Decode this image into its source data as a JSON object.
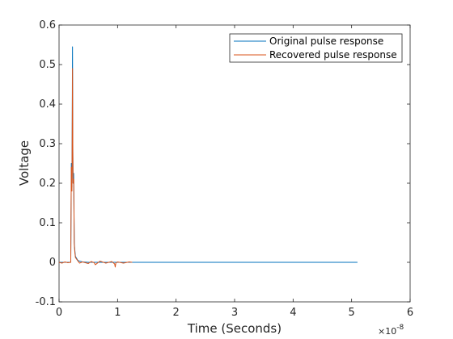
{
  "chart_data": {
    "type": "line",
    "xlabel": "Time (Seconds)",
    "ylabel": "Voltage",
    "xlim": [
      0,
      6
    ],
    "ylim": [
      -0.1,
      0.6
    ],
    "x_exponent_base": "×10",
    "x_exponent": "-8",
    "x_ticks": [
      "0",
      "1",
      "2",
      "3",
      "4",
      "5",
      "6"
    ],
    "y_ticks": [
      "-0.1",
      "0",
      "0.1",
      "0.2",
      "0.3",
      "0.4",
      "0.5",
      "0.6"
    ],
    "grid": false,
    "legend_position": "top-right",
    "series": [
      {
        "name": "Original pulse response",
        "color": "#0072BD",
        "x": [
          0,
          0.2,
          0.21,
          0.22,
          0.225,
          0.23,
          0.235,
          0.24,
          0.25,
          0.26,
          0.27,
          0.28,
          0.3,
          0.32,
          0.35,
          0.4,
          0.5,
          0.6,
          0.8,
          1.0,
          1.2,
          2.0,
          3.0,
          4.0,
          5.1
        ],
        "y": [
          0,
          0,
          0.25,
          0.19,
          0.35,
          0.545,
          0.3,
          0.2,
          0.225,
          0.05,
          0.03,
          0.015,
          0.01,
          0.005,
          0.003,
          0.001,
          0,
          0,
          0,
          0,
          0,
          0,
          0,
          0,
          0
        ]
      },
      {
        "name": "Recovered pulse response",
        "color": "#D95319",
        "x": [
          0,
          0.05,
          0.1,
          0.15,
          0.2,
          0.21,
          0.22,
          0.225,
          0.23,
          0.235,
          0.24,
          0.25,
          0.26,
          0.27,
          0.28,
          0.3,
          0.32,
          0.35,
          0.4,
          0.5,
          0.55,
          0.6,
          0.62,
          0.7,
          0.8,
          0.9,
          0.95,
          0.96,
          0.97,
          1.0,
          1.1,
          1.2,
          1.25
        ],
        "y": [
          0,
          -0.002,
          0.001,
          -0.001,
          0,
          0.24,
          0.18,
          0.32,
          0.49,
          0.28,
          0.2,
          0.21,
          0.045,
          0.025,
          0.012,
          0.008,
          0.004,
          -0.002,
          0.001,
          -0.003,
          0.002,
          -0.001,
          -0.006,
          0.003,
          -0.002,
          0.002,
          -0.004,
          -0.012,
          -0.002,
          0.001,
          -0.002,
          0.001,
          0
        ]
      }
    ]
  }
}
